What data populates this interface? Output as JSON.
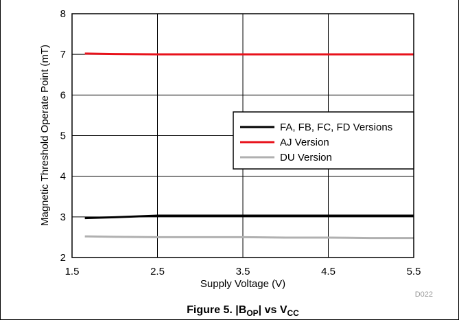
{
  "chart_data": {
    "type": "line",
    "xlabel": "Supply Voltage (V)",
    "ylabel": "Magnetic Threshold Operate Point (mT)",
    "xlim": [
      1.5,
      5.5
    ],
    "ylim": [
      2,
      8
    ],
    "x_ticks": [
      "1.5",
      "2.5",
      "3.5",
      "4.5",
      "5.5"
    ],
    "y_ticks": [
      "2",
      "3",
      "4",
      "5",
      "6",
      "7",
      "8"
    ],
    "grid": true,
    "legend_position": "center-right",
    "series": [
      {
        "name": "FA, FB, FC, FD Versions",
        "color": "#000000",
        "x": [
          1.65,
          2.0,
          2.5,
          3.0,
          3.5,
          4.0,
          4.5,
          5.0,
          5.5
        ],
        "y": [
          2.97,
          2.99,
          3.03,
          3.03,
          3.03,
          3.03,
          3.03,
          3.03,
          3.03
        ]
      },
      {
        "name": "AJ Version",
        "color": "#e8121b",
        "x": [
          1.65,
          2.0,
          2.5,
          3.0,
          3.5,
          4.0,
          4.5,
          5.0,
          5.5
        ],
        "y": [
          7.02,
          7.01,
          7.0,
          7.0,
          7.0,
          7.0,
          7.0,
          7.0,
          7.0
        ]
      },
      {
        "name": "DU Version",
        "color": "#b0b0b0",
        "x": [
          1.65,
          2.0,
          2.5,
          3.0,
          3.5,
          4.0,
          4.5,
          5.0,
          5.5
        ],
        "y": [
          2.52,
          2.51,
          2.5,
          2.5,
          2.5,
          2.49,
          2.49,
          2.48,
          2.48
        ]
      }
    ]
  },
  "code_label": "D022",
  "caption": {
    "prefix": "Figure 5. |B",
    "sub1": "OP",
    "middle": "| vs V",
    "sub2": "CC"
  }
}
